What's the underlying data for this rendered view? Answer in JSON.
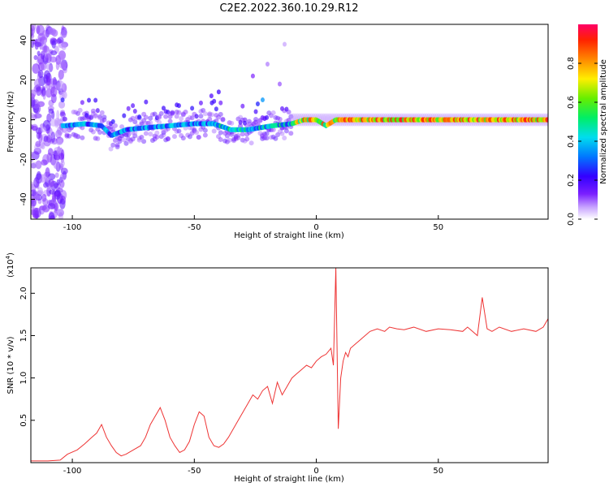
{
  "title": "C2E2.2022.360.10.29.R12",
  "chart_data": [
    {
      "type": "heatmap",
      "xlabel": "Height of straight line (km)",
      "ylabel": "Frequency (Hz)",
      "xlim": [
        -117,
        95
      ],
      "ylim": [
        -50,
        48
      ],
      "xticks": [
        -100,
        -50,
        0,
        50
      ],
      "yticks": [
        -40,
        -20,
        0,
        20,
        40
      ],
      "colorbar": {
        "label": "Normalized spectral amplitude",
        "range": [
          0,
          1
        ],
        "ticks": [
          "0.0",
          "0.2",
          "0.4",
          "0.6",
          "0.8"
        ]
      },
      "ridge": [
        {
          "x": -103,
          "y": -3
        },
        {
          "x": -95,
          "y": -2
        },
        {
          "x": -88,
          "y": -3
        },
        {
          "x": -84,
          "y": -8
        },
        {
          "x": -78,
          "y": -5
        },
        {
          "x": -70,
          "y": -4
        },
        {
          "x": -60,
          "y": -3
        },
        {
          "x": -50,
          "y": -2
        },
        {
          "x": -42,
          "y": -2
        },
        {
          "x": -35,
          "y": -5
        },
        {
          "x": -28,
          "y": -5
        },
        {
          "x": -18,
          "y": -3
        },
        {
          "x": -10,
          "y": -2
        },
        {
          "x": -5,
          "y": 0
        },
        {
          "x": 0,
          "y": 0
        },
        {
          "x": 4,
          "y": -3
        },
        {
          "x": 8,
          "y": 0
        },
        {
          "x": 20,
          "y": 0
        },
        {
          "x": 40,
          "y": 0
        },
        {
          "x": 60,
          "y": 0
        },
        {
          "x": 80,
          "y": 0
        },
        {
          "x": 95,
          "y": 0
        }
      ]
    },
    {
      "type": "line",
      "xlabel": "Height of straight line (km)",
      "ylabel": "SNR (10 * v/v)",
      "y_multiplier": "(x10",
      "y_multiplier_exp": "4",
      "y_multiplier_close": ")",
      "xlim": [
        -117,
        95
      ],
      "ylim": [
        0,
        2.3
      ],
      "xticks": [
        -100,
        -50,
        0,
        50
      ],
      "yticks": [
        0.5,
        1.0,
        1.5,
        2.0
      ],
      "color": "#ee3333",
      "series": [
        {
          "x": [
            -117,
            -110,
            -105,
            -102,
            -98,
            -95,
            -92,
            -90,
            -88,
            -86,
            -84,
            -82,
            -80,
            -78,
            -75,
            -72,
            -70,
            -68,
            -66,
            -64,
            -62,
            -60,
            -58,
            -56,
            -54,
            -52,
            -50,
            -48,
            -46,
            -44,
            -42,
            -40,
            -38,
            -36,
            -34,
            -32,
            -30,
            -28,
            -26,
            -24,
            -22,
            -20,
            -18,
            -16,
            -14,
            -12,
            -10,
            -8,
            -6,
            -4,
            -2,
            0,
            2,
            4,
            6,
            7,
            8,
            9,
            10,
            11,
            12,
            13,
            14,
            16,
            18,
            20,
            22,
            25,
            28,
            30,
            33,
            36,
            40,
            45,
            50,
            55,
            60,
            62,
            64,
            66,
            68,
            70,
            72,
            75,
            80,
            85,
            90,
            93,
            95
          ],
          "y": [
            0.02,
            0.02,
            0.03,
            0.1,
            0.15,
            0.22,
            0.3,
            0.35,
            0.45,
            0.3,
            0.2,
            0.12,
            0.08,
            0.1,
            0.15,
            0.2,
            0.3,
            0.45,
            0.55,
            0.65,
            0.5,
            0.3,
            0.2,
            0.12,
            0.15,
            0.25,
            0.45,
            0.6,
            0.55,
            0.3,
            0.2,
            0.18,
            0.22,
            0.3,
            0.4,
            0.5,
            0.6,
            0.7,
            0.8,
            0.75,
            0.85,
            0.9,
            0.7,
            0.95,
            0.8,
            0.9,
            1.0,
            1.05,
            1.1,
            1.15,
            1.12,
            1.2,
            1.25,
            1.28,
            1.35,
            1.15,
            2.3,
            0.4,
            1.0,
            1.2,
            1.3,
            1.25,
            1.35,
            1.4,
            1.45,
            1.5,
            1.55,
            1.58,
            1.55,
            1.6,
            1.58,
            1.57,
            1.6,
            1.55,
            1.58,
            1.57,
            1.55,
            1.6,
            1.55,
            1.5,
            1.95,
            1.58,
            1.55,
            1.6,
            1.55,
            1.58,
            1.55,
            1.6,
            1.7
          ]
        }
      ]
    }
  ]
}
